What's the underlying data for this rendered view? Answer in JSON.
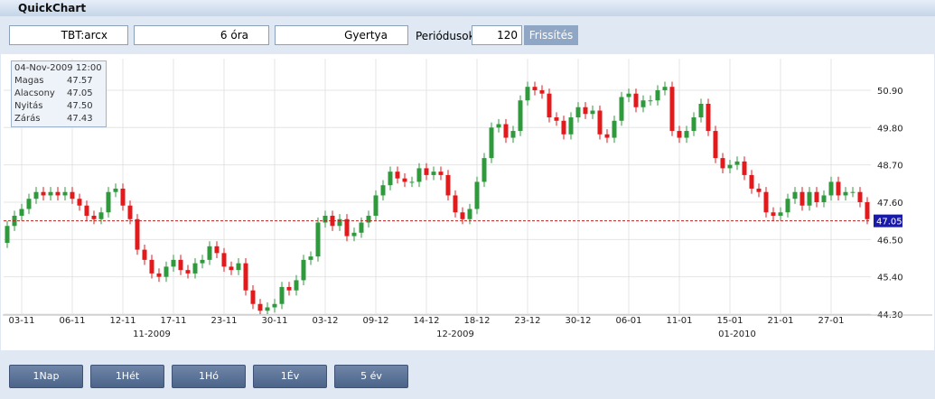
{
  "window": {
    "title": "QuickChart"
  },
  "toolbar": {
    "symbol": "TBT:arcx",
    "interval": "6 óra",
    "chart_kind": "Gyertya",
    "periods_label": "Periódusok",
    "periods": "120",
    "refresh": "Frissítés"
  },
  "info": {
    "date": "04-Nov-2009 12:00",
    "rows": [
      [
        "Magas",
        "47.57"
      ],
      [
        "Alacsony",
        "47.05"
      ],
      [
        "Nyitás",
        "47.50"
      ],
      [
        "Zárás",
        "47.43"
      ]
    ]
  },
  "buttons": [
    "1Nap",
    "1Hét",
    "1Hó",
    "1Év",
    "5 év"
  ],
  "chart_data": {
    "type": "candlestick",
    "up_color": "#2e9a3c",
    "down_color": "#e31a1c",
    "grid": true,
    "categories": [
      null,
      null,
      "03-11",
      null,
      null,
      null,
      null,
      null,
      null,
      "06-11",
      null,
      null,
      null,
      null,
      null,
      null,
      "12-11",
      null,
      null,
      null,
      null,
      null,
      null,
      "17-11",
      null,
      null,
      null,
      null,
      null,
      null,
      "23-11",
      null,
      null,
      null,
      null,
      null,
      null,
      "30-11",
      null,
      null,
      null,
      null,
      null,
      null,
      "03-12",
      null,
      null,
      null,
      null,
      null,
      null,
      "09-12",
      null,
      null,
      null,
      null,
      null,
      null,
      "14-12",
      null,
      null,
      null,
      null,
      null,
      null,
      "18-12",
      null,
      null,
      null,
      null,
      null,
      null,
      "23-12",
      null,
      null,
      null,
      null,
      null,
      null,
      "30-12",
      null,
      null,
      null,
      null,
      null,
      null,
      "06-01",
      null,
      null,
      null,
      null,
      null,
      null,
      "11-01",
      null,
      null,
      null,
      null,
      null,
      null,
      "15-01",
      null,
      null,
      null,
      null,
      null,
      null,
      "21-01",
      null,
      null,
      null,
      null,
      null,
      null,
      "27-01",
      null,
      null,
      null,
      null,
      null
    ],
    "months": [
      null,
      null,
      null,
      null,
      null,
      null,
      null,
      null,
      null,
      null,
      null,
      null,
      null,
      null,
      null,
      null,
      null,
      null,
      null,
      null,
      "11-2009",
      null,
      null,
      null,
      null,
      null,
      null,
      null,
      null,
      null,
      null,
      null,
      null,
      null,
      null,
      null,
      null,
      null,
      null,
      null,
      null,
      null,
      null,
      null,
      null,
      null,
      null,
      null,
      null,
      null,
      null,
      null,
      null,
      null,
      null,
      null,
      null,
      null,
      null,
      null,
      null,
      null,
      "12-2009",
      null,
      null,
      null,
      null,
      null,
      null,
      null,
      null,
      null,
      null,
      null,
      null,
      null,
      null,
      null,
      null,
      null,
      null,
      null,
      null,
      null,
      null,
      null,
      null,
      null,
      null,
      null,
      null,
      null,
      null,
      null,
      null,
      null,
      null,
      null,
      null,
      null,
      null,
      "01-2010",
      null,
      null,
      null,
      null,
      null,
      null,
      null,
      null,
      null,
      null,
      null,
      null,
      null,
      null,
      null
    ],
    "open": [
      46.4,
      46.9,
      47.2,
      47.4,
      47.7,
      47.9,
      47.8,
      47.9,
      47.8,
      47.9,
      47.7,
      47.5,
      47.2,
      47.1,
      47.3,
      47.9,
      48.0,
      47.5,
      47.1,
      46.2,
      45.9,
      45.5,
      45.4,
      45.7,
      45.9,
      45.6,
      45.5,
      45.8,
      45.9,
      46.3,
      46.1,
      45.7,
      45.6,
      45.8,
      45.0,
      44.6,
      44.4,
      44.5,
      44.6,
      45.1,
      45.0,
      45.3,
      45.9,
      46.0,
      47.0,
      47.2,
      46.9,
      47.1,
      46.6,
      46.7,
      47.0,
      47.2,
      47.8,
      48.1,
      48.5,
      48.3,
      48.2,
      48.2,
      48.6,
      48.4,
      48.5,
      48.4,
      47.8,
      47.3,
      47.1,
      47.4,
      48.2,
      48.9,
      49.8,
      49.9,
      49.5,
      49.7,
      50.6,
      51.0,
      50.9,
      50.8,
      50.1,
      50.0,
      49.6,
      50.1,
      50.4,
      50.2,
      50.3,
      49.6,
      49.5,
      50.0,
      50.7,
      50.8,
      50.4,
      50.6,
      50.6,
      50.9,
      51.0,
      49.7,
      49.5,
      49.7,
      50.1,
      50.5,
      49.7,
      48.9,
      48.6,
      48.7,
      48.8,
      48.4,
      48.0,
      47.9,
      47.3,
      47.2,
      47.3,
      47.7,
      47.9,
      47.5,
      47.9,
      47.6,
      47.8,
      48.2,
      47.8,
      47.9,
      47.9,
      47.6
    ],
    "high": [
      47.05,
      47.35,
      47.55,
      47.85,
      48.05,
      48.05,
      48.05,
      48.05,
      48.05,
      48.05,
      47.85,
      47.65,
      47.35,
      47.45,
      48.05,
      48.15,
      48.15,
      47.65,
      47.25,
      46.35,
      46.05,
      45.65,
      45.85,
      46.05,
      46.05,
      45.75,
      45.95,
      46.05,
      46.45,
      46.45,
      46.25,
      45.85,
      45.95,
      45.95,
      45.15,
      44.75,
      44.65,
      44.75,
      45.25,
      45.25,
      45.45,
      46.05,
      46.15,
      47.15,
      47.35,
      47.35,
      47.25,
      47.25,
      46.85,
      47.15,
      47.35,
      47.95,
      48.25,
      48.65,
      48.65,
      48.45,
      48.35,
      48.75,
      48.75,
      48.65,
      48.65,
      48.55,
      47.95,
      47.45,
      47.55,
      48.35,
      49.05,
      49.95,
      50.05,
      50.05,
      49.85,
      50.75,
      51.15,
      51.15,
      51.05,
      50.95,
      50.25,
      50.15,
      50.25,
      50.55,
      50.55,
      50.45,
      50.45,
      49.75,
      50.15,
      50.85,
      50.95,
      50.95,
      50.75,
      50.75,
      51.05,
      51.15,
      51.15,
      49.85,
      49.85,
      50.25,
      50.65,
      50.65,
      49.85,
      49.05,
      48.85,
      48.95,
      48.95,
      48.55,
      48.15,
      48.05,
      47.45,
      47.45,
      47.85,
      48.05,
      48.05,
      48.05,
      48.05,
      47.95,
      48.35,
      48.35,
      48.05,
      48.05,
      48.05,
      47.75
    ],
    "low": [
      46.25,
      46.75,
      47.05,
      47.25,
      47.55,
      47.65,
      47.65,
      47.65,
      47.65,
      47.55,
      47.35,
      47.05,
      46.95,
      46.95,
      47.15,
      47.75,
      47.35,
      46.95,
      46.05,
      45.75,
      45.35,
      45.25,
      45.25,
      45.55,
      45.45,
      45.35,
      45.35,
      45.65,
      45.75,
      45.95,
      45.55,
      45.45,
      45.45,
      44.85,
      44.45,
      44.3,
      44.3,
      44.35,
      44.45,
      44.85,
      44.85,
      45.15,
      45.75,
      45.85,
      46.85,
      46.75,
      46.75,
      46.45,
      46.45,
      46.55,
      46.85,
      47.05,
      47.65,
      47.95,
      48.15,
      48.05,
      48.05,
      48.05,
      48.25,
      48.25,
      48.25,
      47.65,
      47.15,
      46.95,
      46.95,
      47.25,
      48.05,
      48.75,
      49.65,
      49.35,
      49.35,
      49.55,
      50.45,
      50.75,
      50.65,
      49.95,
      49.85,
      49.45,
      49.45,
      49.95,
      50.05,
      50.05,
      49.45,
      49.35,
      49.35,
      49.85,
      50.55,
      50.25,
      50.25,
      50.45,
      50.45,
      50.75,
      49.55,
      49.35,
      49.35,
      49.55,
      49.95,
      49.55,
      48.75,
      48.45,
      48.45,
      48.55,
      48.25,
      47.85,
      47.75,
      47.15,
      47.05,
      47.05,
      47.15,
      47.55,
      47.35,
      47.35,
      47.45,
      47.45,
      47.65,
      47.65,
      47.65,
      47.75,
      47.45,
      46.95
    ],
    "close": [
      46.9,
      47.2,
      47.4,
      47.7,
      47.9,
      47.8,
      47.9,
      47.8,
      47.9,
      47.7,
      47.5,
      47.2,
      47.1,
      47.3,
      47.9,
      48.0,
      47.5,
      47.1,
      46.2,
      45.9,
      45.5,
      45.4,
      45.7,
      45.9,
      45.6,
      45.5,
      45.8,
      45.9,
      46.3,
      46.1,
      45.7,
      45.6,
      45.8,
      45.0,
      44.6,
      44.4,
      44.5,
      44.6,
      45.1,
      45.0,
      45.3,
      45.9,
      46.0,
      47.0,
      47.2,
      46.9,
      47.1,
      46.6,
      46.7,
      47.0,
      47.2,
      47.8,
      48.1,
      48.5,
      48.3,
      48.2,
      48.2,
      48.6,
      48.4,
      48.5,
      48.4,
      47.8,
      47.3,
      47.1,
      47.4,
      48.2,
      48.9,
      49.8,
      49.9,
      49.5,
      49.7,
      50.6,
      51.0,
      50.9,
      50.8,
      50.1,
      50.0,
      49.6,
      50.1,
      50.4,
      50.2,
      50.3,
      49.6,
      49.5,
      50.0,
      50.7,
      50.8,
      50.4,
      50.6,
      50.6,
      50.9,
      51.0,
      49.7,
      49.5,
      49.7,
      50.1,
      50.5,
      49.7,
      48.9,
      48.6,
      48.7,
      48.8,
      48.4,
      48.0,
      47.9,
      47.3,
      47.2,
      47.3,
      47.7,
      47.9,
      47.5,
      47.9,
      47.6,
      47.8,
      48.2,
      47.8,
      47.9,
      47.9,
      47.6,
      47.1
    ],
    "ylim": [
      44.3,
      51.83
    ],
    "yticks": [
      {
        "value": 50.9,
        "label": "50.90"
      },
      {
        "value": 49.8,
        "label": "49.80"
      },
      {
        "value": 48.7,
        "label": "48.70"
      },
      {
        "value": 47.6,
        "label": "47.60"
      },
      {
        "value": 46.5,
        "label": "46.50"
      },
      {
        "value": 45.4,
        "label": "45.40"
      },
      {
        "value": 44.3,
        "label": "44.30"
      }
    ],
    "last_price": 47.05
  }
}
